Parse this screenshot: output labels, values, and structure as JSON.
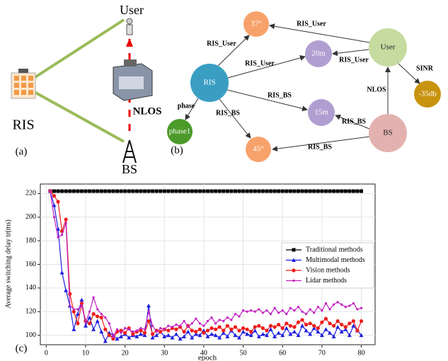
{
  "panel_a": {
    "label": "(a)",
    "user": "User",
    "nlos": "NLOS",
    "ris": "RIS",
    "bs": "BS"
  },
  "panel_b": {
    "label": "(b)",
    "nodes": [
      "RIS",
      "User",
      "BS",
      "37°",
      "20m",
      "15m",
      "45°",
      "phase1",
      "-35db"
    ],
    "edge_labels": [
      "RIS_User",
      "RIS_User",
      "RIS_User",
      "RIS_User",
      "RIS_BS",
      "RIS_BS",
      "RIS_BS",
      "RIS_BS",
      "phase",
      "SINR",
      "NLOS"
    ]
  },
  "panel_c": {
    "label": "(c)"
  },
  "chart_data": {
    "type": "line",
    "xlabel": "epoch",
    "ylabel": "Average switching delay tr(ms)",
    "grid": true,
    "legend": "center right",
    "xlim": [
      -1.5,
      83.5
    ],
    "ylim": [
      92,
      228
    ],
    "xticks": [
      0,
      10,
      20,
      30,
      40,
      50,
      60,
      70,
      80
    ],
    "yticks": [
      100,
      120,
      140,
      160,
      180,
      200,
      220
    ],
    "x": [
      1,
      2,
      3,
      4,
      5,
      6,
      7,
      8,
      9,
      10,
      11,
      12,
      13,
      14,
      15,
      16,
      17,
      18,
      19,
      20,
      21,
      22,
      23,
      24,
      25,
      26,
      27,
      28,
      29,
      30,
      31,
      32,
      33,
      34,
      35,
      36,
      37,
      38,
      39,
      40,
      41,
      42,
      43,
      44,
      45,
      46,
      47,
      48,
      49,
      50,
      51,
      52,
      53,
      54,
      55,
      56,
      57,
      58,
      59,
      60,
      61,
      62,
      63,
      64,
      65,
      66,
      67,
      68,
      69,
      70,
      71,
      72,
      73,
      74,
      75,
      76,
      77,
      78,
      79,
      80
    ],
    "series": [
      {
        "name": "Traditional methods",
        "color": "#000000",
        "marker": "square",
        "values": [
          222,
          222,
          222,
          222,
          222,
          222,
          222,
          222,
          222,
          222,
          222,
          222,
          222,
          222,
          222,
          222,
          222,
          222,
          222,
          222,
          222,
          222,
          222,
          222,
          222,
          222,
          222,
          222,
          222,
          222,
          222,
          222,
          222,
          222,
          222,
          222,
          222,
          222,
          222,
          222,
          222,
          222,
          222,
          222,
          222,
          222,
          222,
          222,
          222,
          222,
          222,
          222,
          222,
          222,
          222,
          222,
          222,
          222,
          222,
          222,
          222,
          222,
          222,
          222,
          222,
          222,
          222,
          222,
          222,
          222,
          222,
          222,
          222,
          222,
          222,
          222,
          222,
          222,
          222,
          222
        ]
      },
      {
        "name": "Multimodal methods",
        "color": "#1f1fe0",
        "marker": "triangle",
        "values": [
          222,
          210,
          190,
          153,
          138,
          125,
          105,
          118,
          130,
          108,
          115,
          105,
          112,
          103,
          95,
          102,
          100,
          97,
          99,
          101,
          98,
          100,
          99,
          101,
          100,
          125,
          98,
          100,
          103,
          99,
          100,
          98,
          101,
          97,
          99,
          103,
          98,
          101,
          100,
          104,
          99,
          101,
          100,
          98,
          102,
          99,
          104,
          100,
          98,
          103,
          101,
          100,
          104,
          99,
          101,
          100,
          105,
          99,
          102,
          100,
          106,
          101,
          103,
          100,
          108,
          104,
          101,
          106,
          103,
          100,
          105,
          102,
          99,
          107,
          103,
          105,
          100,
          108,
          104,
          100
        ]
      },
      {
        "name": "Vision methods",
        "color": "#ee1c1c",
        "marker": "circle",
        "values": [
          222,
          218,
          213,
          188,
          198,
          135,
          120,
          110,
          127,
          112,
          110,
          118,
          116,
          115,
          105,
          100,
          97,
          103,
          104,
          102,
          106,
          101,
          103,
          104,
          102,
          112,
          101,
          104,
          103,
          105,
          104,
          106,
          105,
          107,
          103,
          108,
          104,
          103,
          105,
          102,
          104,
          106,
          105,
          107,
          104,
          108,
          105,
          107,
          104,
          106,
          105,
          103,
          107,
          108,
          106,
          104,
          108,
          107,
          109,
          106,
          110,
          108,
          107,
          111,
          113,
          109,
          110,
          108,
          106,
          111,
          114,
          110,
          108,
          112,
          109,
          107,
          110,
          112,
          104,
          112
        ]
      },
      {
        "name": "Lidar methods",
        "color": "#c21fc2",
        "marker": "dot",
        "values": [
          222,
          200,
          183,
          185,
          195,
          125,
          122,
          122,
          125,
          111,
          120,
          132,
          122,
          118,
          115,
          110,
          99,
          105,
          102,
          106,
          105,
          103,
          104,
          106,
          105,
          120,
          108,
          103,
          106,
          105,
          108,
          107,
          109,
          108,
          112,
          107,
          110,
          114,
          110,
          108,
          112,
          115,
          110,
          113,
          112,
          115,
          113,
          118,
          116,
          121,
          120,
          121,
          120,
          122,
          119,
          121,
          118,
          123,
          119,
          121,
          118,
          123,
          121,
          124,
          120,
          118,
          122,
          119,
          124,
          121,
          127,
          122,
          126,
          128,
          126,
          124,
          125,
          127,
          122,
          123
        ]
      }
    ]
  }
}
